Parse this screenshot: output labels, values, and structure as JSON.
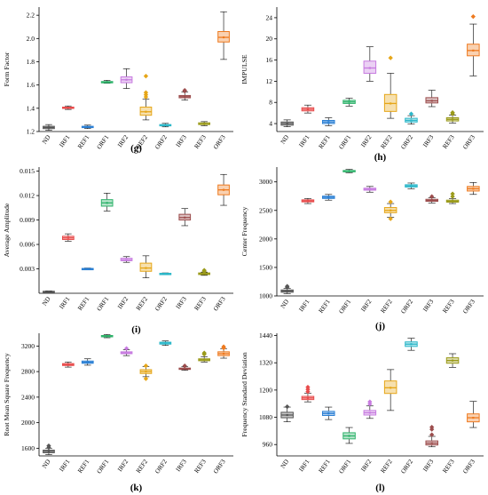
{
  "categories": [
    "ND",
    "IRF1",
    "REF1",
    "ORF1",
    "IRF2",
    "REF2",
    "ORF2",
    "IRF3",
    "REF3",
    "ORF3"
  ],
  "colors": {
    "ND": "#555555",
    "IRF1": "#e84a4a",
    "REF1": "#2a7fd4",
    "ORF1": "#2fb36b",
    "IRF2": "#c77be0",
    "REF2": "#e6a618",
    "ORF2": "#2bb7c9",
    "IRF3": "#9c4d4d",
    "REF3": "#9a9a1a",
    "ORF3": "#ee7a1f"
  },
  "chart_data": [
    {
      "id": "g",
      "panel_label": "(g)",
      "type": "box",
      "ylabel": "Form Factor",
      "yticks": [
        1.2,
        1.4,
        1.6,
        1.8,
        2.0,
        2.2
      ],
      "ylim": [
        1.2,
        2.27
      ],
      "tick_labels": [
        "1.2",
        "1.4",
        "1.6",
        "1.8",
        "2.0",
        "2.2"
      ],
      "boxes": [
        {
          "min": 1.21,
          "q1": 1.225,
          "med": 1.235,
          "q3": 1.245,
          "max": 1.26,
          "out": []
        },
        {
          "min": 1.39,
          "q1": 1.4,
          "med": 1.405,
          "q3": 1.41,
          "max": 1.42,
          "out": []
        },
        {
          "min": 1.225,
          "q1": 1.235,
          "med": 1.24,
          "q3": 1.245,
          "max": 1.255,
          "out": []
        },
        {
          "min": 1.615,
          "q1": 1.62,
          "med": 1.625,
          "q3": 1.63,
          "max": 1.64,
          "out": []
        },
        {
          "min": 1.57,
          "q1": 1.62,
          "med": 1.645,
          "q3": 1.67,
          "max": 1.74,
          "out": []
        },
        {
          "min": 1.3,
          "q1": 1.34,
          "med": 1.37,
          "q3": 1.41,
          "max": 1.48,
          "out": [
            1.5,
            1.52,
            1.54,
            1.68
          ]
        },
        {
          "min": 1.24,
          "q1": 1.25,
          "med": 1.255,
          "q3": 1.26,
          "max": 1.27,
          "out": []
        },
        {
          "min": 1.47,
          "q1": 1.49,
          "med": 1.5,
          "q3": 1.51,
          "max": 1.54,
          "out": [
            1.55,
            1.56
          ]
        },
        {
          "min": 1.25,
          "q1": 1.26,
          "med": 1.265,
          "q3": 1.275,
          "max": 1.285,
          "out": []
        },
        {
          "min": 1.82,
          "q1": 1.97,
          "med": 2.01,
          "q3": 2.06,
          "max": 2.23,
          "out": []
        }
      ]
    },
    {
      "id": "h",
      "panel_label": "(h)",
      "type": "box",
      "ylabel": "IMPULSE",
      "yticks": [
        4,
        8,
        12,
        16,
        20,
        24
      ],
      "ylim": [
        2.5,
        26
      ],
      "tick_labels": [
        "4",
        "8",
        "12",
        "16",
        "20",
        "24"
      ],
      "boxes": [
        {
          "min": 3.4,
          "q1": 3.7,
          "med": 4.0,
          "q3": 4.3,
          "max": 4.7,
          "out": []
        },
        {
          "min": 6.0,
          "q1": 6.4,
          "med": 6.7,
          "q3": 7.0,
          "max": 7.5,
          "out": []
        },
        {
          "min": 3.6,
          "q1": 4.0,
          "med": 4.3,
          "q3": 4.6,
          "max": 5.1,
          "out": []
        },
        {
          "min": 7.3,
          "q1": 7.8,
          "med": 8.1,
          "q3": 8.4,
          "max": 8.8,
          "out": []
        },
        {
          "min": 12.0,
          "q1": 13.5,
          "med": 14.5,
          "q3": 15.8,
          "max": 18.5,
          "out": []
        },
        {
          "min": 5.0,
          "q1": 6.3,
          "med": 7.8,
          "q3": 9.5,
          "max": 13.5,
          "out": [
            16.5
          ]
        },
        {
          "min": 3.9,
          "q1": 4.3,
          "med": 4.6,
          "q3": 5.0,
          "max": 5.5,
          "out": [
            5.9
          ]
        },
        {
          "min": 7.2,
          "q1": 7.9,
          "med": 8.3,
          "q3": 8.9,
          "max": 10.3,
          "out": []
        },
        {
          "min": 4.1,
          "q1": 4.5,
          "med": 4.8,
          "q3": 5.1,
          "max": 5.6,
          "out": [
            5.9,
            6.2
          ]
        },
        {
          "min": 13.0,
          "q1": 16.8,
          "med": 17.8,
          "q3": 19.0,
          "max": 22.8,
          "out": [
            24.3
          ]
        }
      ]
    },
    {
      "id": "i",
      "panel_label": "(i)",
      "type": "box",
      "ylabel": "Average Amplitude",
      "yticks": [
        0.003,
        0.006,
        0.009,
        0.012,
        0.015
      ],
      "ylim": [
        0.0,
        0.0155
      ],
      "tick_labels": [
        "0.003",
        "0.006",
        "0.009",
        "0.012",
        "0.015"
      ],
      "boxes": [
        {
          "min": 0.0001,
          "q1": 0.00015,
          "med": 0.0002,
          "q3": 0.00025,
          "max": 0.0003,
          "out": []
        },
        {
          "min": 0.0064,
          "q1": 0.0066,
          "med": 0.0068,
          "q3": 0.007,
          "max": 0.0073,
          "out": []
        },
        {
          "min": 0.0029,
          "q1": 0.00295,
          "med": 0.003,
          "q3": 0.00305,
          "max": 0.0031,
          "out": []
        },
        {
          "min": 0.0101,
          "q1": 0.0107,
          "med": 0.0111,
          "q3": 0.0115,
          "max": 0.0123,
          "out": []
        },
        {
          "min": 0.0038,
          "q1": 0.004,
          "med": 0.0041,
          "q3": 0.0043,
          "max": 0.0045,
          "out": []
        },
        {
          "min": 0.0019,
          "q1": 0.0027,
          "med": 0.0031,
          "q3": 0.0037,
          "max": 0.0046,
          "out": []
        },
        {
          "min": 0.0023,
          "q1": 0.00235,
          "med": 0.0024,
          "q3": 0.00245,
          "max": 0.0025,
          "out": []
        },
        {
          "min": 0.0083,
          "q1": 0.009,
          "med": 0.0093,
          "q3": 0.0097,
          "max": 0.0104,
          "out": []
        },
        {
          "min": 0.0022,
          "q1": 0.0023,
          "med": 0.0024,
          "q3": 0.0025,
          "max": 0.0026,
          "out": [
            0.0028,
            0.0029
          ]
        },
        {
          "min": 0.0108,
          "q1": 0.0121,
          "med": 0.0127,
          "q3": 0.0133,
          "max": 0.0146,
          "out": []
        }
      ]
    },
    {
      "id": "j",
      "panel_label": "(j)",
      "type": "box",
      "ylabel": "Center Frequency",
      "yticks": [
        1000,
        1500,
        2000,
        2500,
        3000
      ],
      "ylim": [
        1000,
        3260
      ],
      "tick_labels": [
        "1000",
        "1500",
        "2000",
        "2500",
        "3000"
      ],
      "boxes": [
        {
          "min": 1040,
          "q1": 1065,
          "med": 1085,
          "q3": 1105,
          "max": 1130,
          "out": [
            1160,
            1180
          ]
        },
        {
          "min": 2620,
          "q1": 2650,
          "med": 2665,
          "q3": 2685,
          "max": 2710,
          "out": []
        },
        {
          "min": 2680,
          "q1": 2710,
          "med": 2730,
          "q3": 2750,
          "max": 2780,
          "out": []
        },
        {
          "min": 3160,
          "q1": 3180,
          "med": 3190,
          "q3": 3200,
          "max": 3220,
          "out": []
        },
        {
          "min": 2820,
          "q1": 2855,
          "med": 2870,
          "q3": 2890,
          "max": 2920,
          "out": []
        },
        {
          "min": 2380,
          "q1": 2460,
          "med": 2500,
          "q3": 2550,
          "max": 2620,
          "out": [
            2360,
            2660
          ]
        },
        {
          "min": 2880,
          "q1": 2910,
          "med": 2930,
          "q3": 2950,
          "max": 2980,
          "out": []
        },
        {
          "min": 2630,
          "q1": 2660,
          "med": 2675,
          "q3": 2695,
          "max": 2720,
          "out": [
            2750
          ]
        },
        {
          "min": 2620,
          "q1": 2645,
          "med": 2660,
          "q3": 2680,
          "max": 2710,
          "out": [
            2750,
            2800
          ]
        },
        {
          "min": 2780,
          "q1": 2840,
          "med": 2880,
          "q3": 2920,
          "max": 2990,
          "out": []
        }
      ]
    },
    {
      "id": "k",
      "panel_label": "(k)",
      "type": "box",
      "ylabel": "Root Mean Square Frequency",
      "yticks": [
        1600,
        2000,
        2400,
        2800,
        3200
      ],
      "ylim": [
        1480,
        3400
      ],
      "tick_labels": [
        "1600",
        "2000",
        "2400",
        "2800",
        "3200"
      ],
      "boxes": [
        {
          "min": 1500,
          "q1": 1530,
          "med": 1550,
          "q3": 1570,
          "max": 1600,
          "out": [
            1620,
            1650
          ]
        },
        {
          "min": 2870,
          "q1": 2895,
          "med": 2910,
          "q3": 2925,
          "max": 2950,
          "out": []
        },
        {
          "min": 2900,
          "q1": 2930,
          "med": 2945,
          "q3": 2965,
          "max": 3000,
          "out": []
        },
        {
          "min": 3330,
          "q1": 3345,
          "med": 3355,
          "q3": 3365,
          "max": 3380,
          "out": []
        },
        {
          "min": 3050,
          "q1": 3080,
          "med": 3095,
          "q3": 3110,
          "max": 3140,
          "out": [
            3170
          ]
        },
        {
          "min": 2720,
          "q1": 2770,
          "med": 2800,
          "q3": 2830,
          "max": 2880,
          "out": [
            2700,
            2900
          ]
        },
        {
          "min": 3210,
          "q1": 3230,
          "med": 3245,
          "q3": 3260,
          "max": 3280,
          "out": []
        },
        {
          "min": 2820,
          "q1": 2835,
          "med": 2845,
          "q3": 2855,
          "max": 2875,
          "out": [
            2900
          ]
        },
        {
          "min": 2950,
          "q1": 2970,
          "med": 2985,
          "q3": 3000,
          "max": 3030,
          "out": [
            3080,
            3100
          ]
        },
        {
          "min": 3010,
          "q1": 3050,
          "med": 3080,
          "q3": 3110,
          "max": 3160,
          "out": [
            3180,
            3200
          ]
        }
      ]
    },
    {
      "id": "l",
      "panel_label": "(l)",
      "type": "box",
      "ylabel": "Frequency Standard Deviation",
      "yticks": [
        960,
        1080,
        1200,
        1320,
        1440
      ],
      "ylim": [
        910,
        1450
      ],
      "tick_labels": [
        "960",
        "1080",
        "1200",
        "1320",
        "1440"
      ],
      "boxes": [
        {
          "min": 1060,
          "q1": 1078,
          "med": 1090,
          "q3": 1102,
          "max": 1125,
          "out": [
            1130
          ]
        },
        {
          "min": 1148,
          "q1": 1158,
          "med": 1165,
          "q3": 1172,
          "max": 1186,
          "out": [
            1195,
            1205,
            1215
          ]
        },
        {
          "min": 1070,
          "q1": 1088,
          "med": 1097,
          "q3": 1106,
          "max": 1125,
          "out": []
        },
        {
          "min": 965,
          "q1": 985,
          "med": 998,
          "q3": 1012,
          "max": 1035,
          "out": []
        },
        {
          "min": 1075,
          "q1": 1090,
          "med": 1100,
          "q3": 1110,
          "max": 1130,
          "out": [
            1140,
            1150
          ]
        },
        {
          "min": 1110,
          "q1": 1185,
          "med": 1210,
          "q3": 1240,
          "max": 1290,
          "out": []
        },
        {
          "min": 1375,
          "q1": 1392,
          "med": 1402,
          "q3": 1412,
          "max": 1428,
          "out": []
        },
        {
          "min": 950,
          "q1": 958,
          "med": 966,
          "q3": 976,
          "max": 996,
          "out": [
            1005,
            1030,
            1040
          ]
        },
        {
          "min": 1300,
          "q1": 1318,
          "med": 1330,
          "q3": 1342,
          "max": 1360,
          "out": []
        },
        {
          "min": 1035,
          "q1": 1060,
          "med": 1078,
          "q3": 1095,
          "max": 1150,
          "out": []
        }
      ]
    }
  ]
}
